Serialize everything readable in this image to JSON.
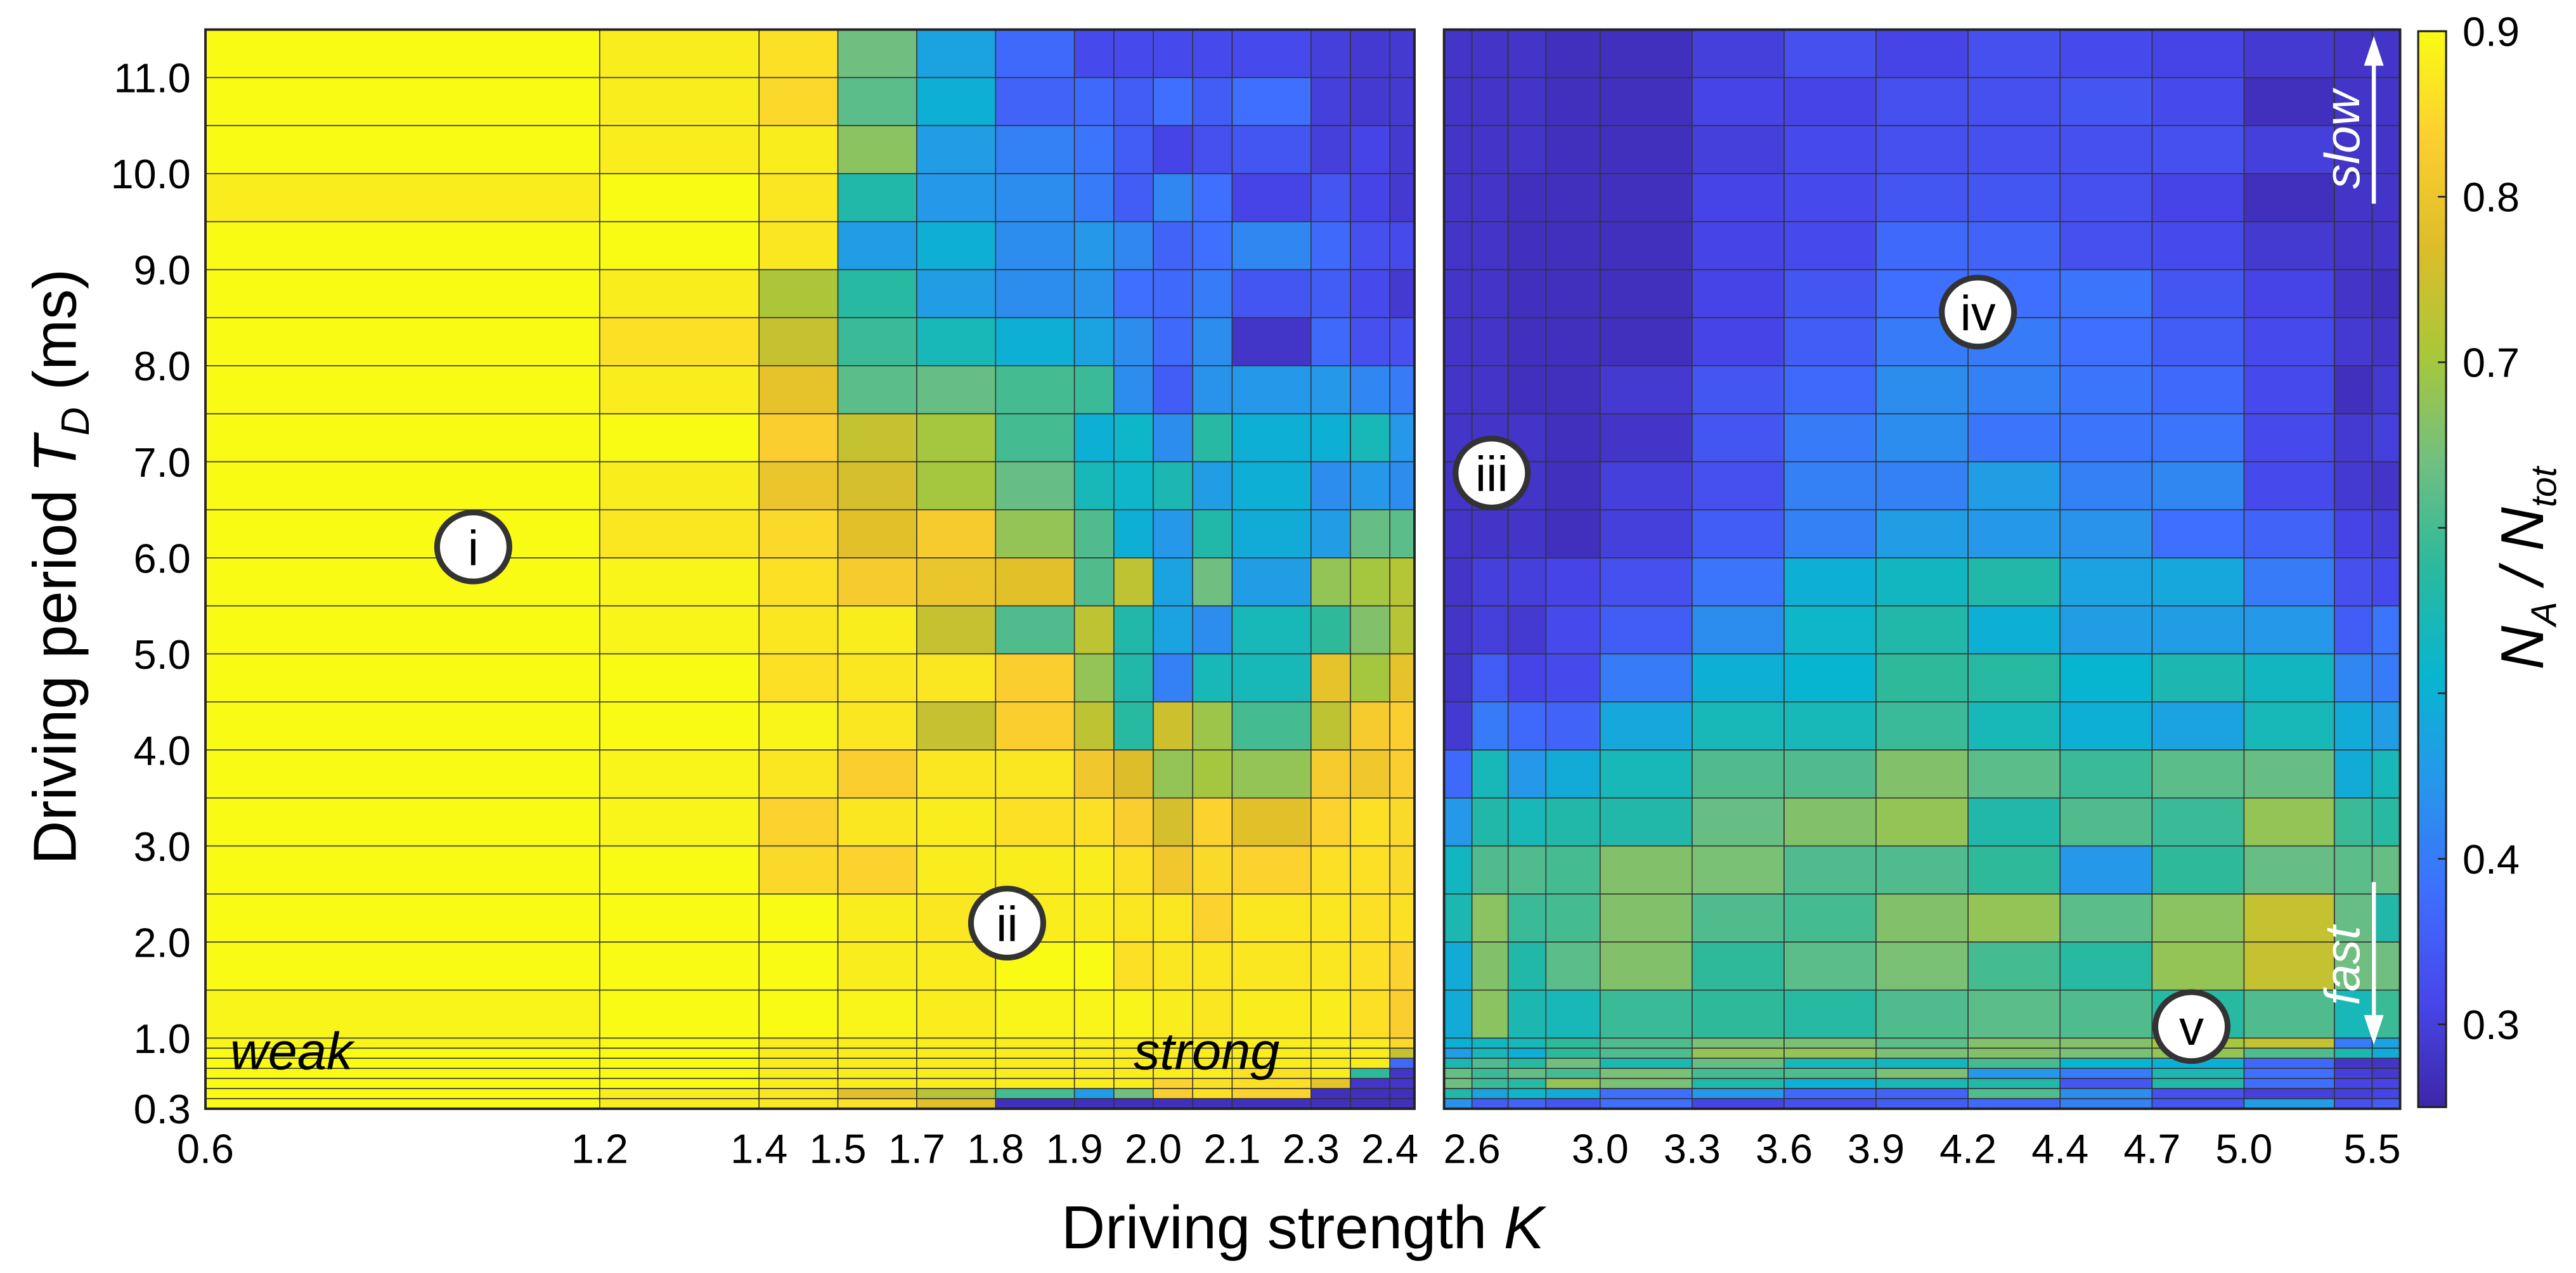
{
  "chart_data": {
    "type": "heatmap",
    "colormap": "parula",
    "xlabel": {
      "text": "Driving strength ",
      "var": "K"
    },
    "ylabel": {
      "text": "Driving period ",
      "var": "T",
      "sub": "D",
      "unit": " (ms)"
    },
    "colorbar": {
      "label": {
        "n1": "N",
        "sub1": "A",
        "sep": " / ",
        "n2": "N",
        "sub2": "tot"
      },
      "range": [
        0.25,
        0.9
      ],
      "ticks": [
        0.3,
        0.4,
        0.5,
        0.6,
        0.7,
        0.8,
        0.9
      ],
      "tick_labels": [
        "0.3",
        "0.4",
        "",
        "",
        "0.7",
        "0.8",
        "0.9"
      ]
    },
    "y_ticks": [
      "11.0",
      "10.0",
      "9.0",
      "8.0",
      "7.0",
      "6.0",
      "5.0",
      "4.0",
      "3.0",
      "2.0",
      "1.0",
      "0.3"
    ],
    "rows_T_ms": [
      11.0,
      10.5,
      10.0,
      9.5,
      9.0,
      8.5,
      8.0,
      7.5,
      7.0,
      6.5,
      6.0,
      5.5,
      5.0,
      4.5,
      4.0,
      3.5,
      3.0,
      2.5,
      2.0,
      1.5,
      1.0,
      0.9,
      0.8,
      0.7,
      0.6,
      0.5,
      0.4,
      0.3
    ],
    "panels": [
      {
        "x_ticks": [
          "0.6",
          "1.2",
          "1.4",
          "1.5",
          "1.7",
          "1.8",
          "1.9",
          "2.0",
          "2.1",
          "2.3",
          "2.4"
        ],
        "values": [
          [
            0.9,
            0.88,
            0.86,
            0.64,
            0.47,
            0.37,
            0.32,
            0.32,
            0.32,
            0.32,
            0.32,
            0.3,
            0.29,
            0.29
          ],
          [
            0.9,
            0.88,
            0.85,
            0.62,
            0.5,
            0.36,
            0.37,
            0.35,
            0.38,
            0.35,
            0.38,
            0.3,
            0.29,
            0.29
          ],
          [
            0.9,
            0.88,
            0.88,
            0.67,
            0.46,
            0.41,
            0.39,
            0.35,
            0.31,
            0.33,
            0.34,
            0.3,
            0.31,
            0.29
          ],
          [
            0.88,
            0.9,
            0.87,
            0.56,
            0.45,
            0.43,
            0.4,
            0.35,
            0.42,
            0.38,
            0.31,
            0.34,
            0.31,
            0.29
          ],
          [
            0.9,
            0.9,
            0.87,
            0.46,
            0.5,
            0.43,
            0.45,
            0.42,
            0.36,
            0.38,
            0.42,
            0.37,
            0.33,
            0.32
          ],
          [
            0.9,
            0.88,
            0.71,
            0.57,
            0.46,
            0.43,
            0.44,
            0.38,
            0.37,
            0.4,
            0.34,
            0.35,
            0.32,
            0.29
          ],
          [
            0.9,
            0.86,
            0.74,
            0.59,
            0.54,
            0.5,
            0.47,
            0.43,
            0.37,
            0.43,
            0.28,
            0.37,
            0.33,
            0.33
          ],
          [
            0.9,
            0.88,
            0.79,
            0.62,
            0.63,
            0.6,
            0.59,
            0.43,
            0.35,
            0.44,
            0.45,
            0.45,
            0.42,
            0.4
          ],
          [
            0.9,
            0.9,
            0.83,
            0.74,
            0.7,
            0.6,
            0.5,
            0.52,
            0.43,
            0.57,
            0.5,
            0.5,
            0.54,
            0.45
          ],
          [
            0.9,
            0.88,
            0.8,
            0.76,
            0.7,
            0.63,
            0.54,
            0.52,
            0.55,
            0.46,
            0.5,
            0.43,
            0.45,
            0.43
          ],
          [
            0.9,
            0.87,
            0.85,
            0.78,
            0.82,
            0.68,
            0.61,
            0.5,
            0.45,
            0.56,
            0.49,
            0.46,
            0.63,
            0.62
          ],
          [
            0.9,
            0.89,
            0.86,
            0.82,
            0.8,
            0.78,
            0.61,
            0.73,
            0.47,
            0.64,
            0.46,
            0.68,
            0.7,
            0.72
          ],
          [
            0.9,
            0.89,
            0.87,
            0.88,
            0.74,
            0.61,
            0.73,
            0.56,
            0.47,
            0.43,
            0.54,
            0.58,
            0.66,
            0.72
          ],
          [
            0.9,
            0.9,
            0.86,
            0.87,
            0.87,
            0.83,
            0.68,
            0.56,
            0.41,
            0.54,
            0.54,
            0.79,
            0.7,
            0.79
          ],
          [
            0.9,
            0.9,
            0.89,
            0.87,
            0.74,
            0.83,
            0.73,
            0.57,
            0.75,
            0.69,
            0.6,
            0.73,
            0.82,
            0.83
          ],
          [
            0.9,
            0.89,
            0.87,
            0.83,
            0.87,
            0.87,
            0.81,
            0.77,
            0.68,
            0.7,
            0.68,
            0.82,
            0.81,
            0.83
          ],
          [
            0.9,
            0.89,
            0.84,
            0.87,
            0.88,
            0.86,
            0.86,
            0.83,
            0.76,
            0.84,
            0.78,
            0.84,
            0.86,
            0.85
          ],
          [
            0.9,
            0.9,
            0.85,
            0.84,
            0.88,
            0.88,
            0.88,
            0.86,
            0.81,
            0.85,
            0.84,
            0.86,
            0.86,
            0.85
          ],
          [
            0.9,
            0.9,
            0.9,
            0.88,
            0.87,
            0.88,
            0.88,
            0.87,
            0.87,
            0.84,
            0.87,
            0.87,
            0.86,
            0.86
          ],
          [
            0.9,
            0.9,
            0.9,
            0.88,
            0.88,
            0.9,
            0.9,
            0.86,
            0.87,
            0.87,
            0.87,
            0.87,
            0.86,
            0.84
          ],
          [
            0.89,
            0.9,
            0.9,
            0.89,
            0.88,
            0.89,
            0.89,
            0.89,
            0.88,
            0.87,
            0.88,
            0.88,
            0.86,
            0.83
          ],
          [
            0.89,
            0.9,
            0.88,
            0.88,
            0.88,
            0.88,
            0.88,
            0.88,
            0.88,
            0.88,
            0.88,
            0.88,
            0.88,
            0.85
          ],
          [
            0.9,
            0.9,
            0.88,
            0.88,
            0.88,
            0.88,
            0.88,
            0.88,
            0.88,
            0.88,
            0.88,
            0.88,
            0.88,
            0.74
          ],
          [
            0.9,
            0.9,
            0.88,
            0.88,
            0.88,
            0.88,
            0.88,
            0.88,
            0.88,
            0.88,
            0.88,
            0.88,
            0.88,
            0.37
          ],
          [
            0.9,
            0.9,
            0.88,
            0.88,
            0.88,
            0.88,
            0.88,
            0.88,
            0.88,
            0.88,
            0.86,
            0.88,
            0.58,
            0.28
          ],
          [
            0.9,
            0.9,
            0.88,
            0.88,
            0.88,
            0.88,
            0.88,
            0.88,
            0.84,
            0.86,
            0.86,
            0.79,
            0.28,
            0.28
          ],
          [
            0.9,
            0.88,
            0.87,
            0.78,
            0.72,
            0.6,
            0.46,
            0.64,
            0.83,
            0.86,
            0.84,
            0.27,
            0.27,
            0.27
          ],
          [
            0.9,
            0.88,
            0.87,
            0.86,
            0.78,
            0.27,
            0.27,
            0.27,
            0.27,
            0.27,
            0.27,
            0.27,
            0.27,
            0.27
          ]
        ]
      },
      {
        "x_ticks": [
          "2.6",
          "3.0",
          "3.3",
          "3.6",
          "3.9",
          "4.2",
          "4.4",
          "4.7",
          "5.0",
          "5.5"
        ],
        "values": [
          [
            0.28,
            0.28,
            0.28,
            0.27,
            0.27,
            0.3,
            0.33,
            0.31,
            0.33,
            0.32,
            0.31,
            0.29,
            0.28,
            0.28
          ],
          [
            0.28,
            0.28,
            0.28,
            0.27,
            0.27,
            0.31,
            0.31,
            0.33,
            0.33,
            0.34,
            0.32,
            0.27,
            0.28,
            0.28
          ],
          [
            0.28,
            0.28,
            0.28,
            0.27,
            0.27,
            0.3,
            0.32,
            0.33,
            0.33,
            0.33,
            0.33,
            0.3,
            0.28,
            0.28
          ],
          [
            0.28,
            0.28,
            0.27,
            0.27,
            0.27,
            0.31,
            0.32,
            0.34,
            0.34,
            0.33,
            0.31,
            0.27,
            0.28,
            0.28
          ],
          [
            0.28,
            0.28,
            0.27,
            0.27,
            0.27,
            0.31,
            0.32,
            0.37,
            0.36,
            0.33,
            0.32,
            0.29,
            0.28,
            0.28
          ],
          [
            0.28,
            0.28,
            0.27,
            0.27,
            0.27,
            0.31,
            0.34,
            0.38,
            0.38,
            0.39,
            0.34,
            0.31,
            0.28,
            0.27
          ],
          [
            0.28,
            0.28,
            0.27,
            0.27,
            0.27,
            0.31,
            0.35,
            0.4,
            0.4,
            0.38,
            0.35,
            0.32,
            0.29,
            0.28
          ],
          [
            0.28,
            0.28,
            0.27,
            0.27,
            0.29,
            0.34,
            0.37,
            0.43,
            0.41,
            0.39,
            0.37,
            0.32,
            0.27,
            0.29
          ],
          [
            0.28,
            0.28,
            0.28,
            0.27,
            0.28,
            0.34,
            0.4,
            0.43,
            0.39,
            0.39,
            0.39,
            0.32,
            0.29,
            0.3
          ],
          [
            0.28,
            0.28,
            0.28,
            0.27,
            0.3,
            0.33,
            0.41,
            0.41,
            0.46,
            0.41,
            0.42,
            0.32,
            0.29,
            0.28
          ],
          [
            0.28,
            0.28,
            0.28,
            0.27,
            0.3,
            0.35,
            0.41,
            0.46,
            0.45,
            0.44,
            0.38,
            0.36,
            0.31,
            0.3
          ],
          [
            0.28,
            0.3,
            0.3,
            0.31,
            0.33,
            0.39,
            0.5,
            0.53,
            0.56,
            0.47,
            0.48,
            0.4,
            0.33,
            0.32
          ],
          [
            0.28,
            0.3,
            0.29,
            0.32,
            0.35,
            0.43,
            0.52,
            0.56,
            0.5,
            0.46,
            0.46,
            0.45,
            0.35,
            0.39
          ],
          [
            0.28,
            0.35,
            0.31,
            0.32,
            0.4,
            0.5,
            0.51,
            0.58,
            0.57,
            0.51,
            0.55,
            0.53,
            0.42,
            0.4
          ],
          [
            0.29,
            0.4,
            0.37,
            0.36,
            0.48,
            0.54,
            0.54,
            0.59,
            0.54,
            0.5,
            0.47,
            0.54,
            0.49,
            0.46
          ],
          [
            0.37,
            0.54,
            0.45,
            0.49,
            0.54,
            0.61,
            0.61,
            0.66,
            0.62,
            0.59,
            0.62,
            0.63,
            0.49,
            0.54
          ],
          [
            0.45,
            0.56,
            0.54,
            0.56,
            0.56,
            0.63,
            0.66,
            0.68,
            0.56,
            0.61,
            0.59,
            0.68,
            0.59,
            0.57
          ],
          [
            0.53,
            0.61,
            0.61,
            0.6,
            0.66,
            0.65,
            0.61,
            0.61,
            0.58,
            0.45,
            0.58,
            0.63,
            0.62,
            0.63
          ],
          [
            0.55,
            0.67,
            0.59,
            0.6,
            0.66,
            0.61,
            0.6,
            0.66,
            0.68,
            0.62,
            0.67,
            0.74,
            0.63,
            0.56
          ],
          [
            0.49,
            0.66,
            0.56,
            0.62,
            0.66,
            0.58,
            0.62,
            0.65,
            0.6,
            0.57,
            0.68,
            0.74,
            0.64,
            0.64
          ],
          [
            0.49,
            0.67,
            0.55,
            0.54,
            0.59,
            0.58,
            0.57,
            0.61,
            0.62,
            0.61,
            0.57,
            0.61,
            0.54,
            0.59
          ],
          [
            0.5,
            0.53,
            0.54,
            0.58,
            0.61,
            0.65,
            0.65,
            0.62,
            0.66,
            0.66,
            0.7,
            0.74,
            0.4,
            0.47
          ],
          [
            0.46,
            0.54,
            0.5,
            0.58,
            0.61,
            0.68,
            0.68,
            0.65,
            0.66,
            0.65,
            0.68,
            0.61,
            0.55,
            0.49
          ],
          [
            0.55,
            0.61,
            0.57,
            0.64,
            0.55,
            0.63,
            0.54,
            0.53,
            0.6,
            0.51,
            0.5,
            0.37,
            0.28,
            0.28
          ],
          [
            0.63,
            0.59,
            0.63,
            0.6,
            0.65,
            0.6,
            0.61,
            0.65,
            0.45,
            0.4,
            0.55,
            0.38,
            0.3,
            0.29
          ],
          [
            0.64,
            0.59,
            0.57,
            0.68,
            0.65,
            0.56,
            0.5,
            0.54,
            0.56,
            0.34,
            0.56,
            0.38,
            0.31,
            0.31
          ],
          [
            0.56,
            0.47,
            0.52,
            0.49,
            0.38,
            0.45,
            0.37,
            0.36,
            0.61,
            0.43,
            0.33,
            0.3,
            0.3,
            0.31
          ],
          [
            0.44,
            0.35,
            0.36,
            0.34,
            0.38,
            0.31,
            0.33,
            0.35,
            0.37,
            0.41,
            0.34,
            0.46,
            0.33,
            0.35
          ]
        ]
      }
    ],
    "annotations": {
      "regions": [
        "i",
        "ii",
        "iii",
        "iv",
        "v"
      ],
      "weak": "weak",
      "strong": "strong",
      "slow": "slow",
      "fast": "fast"
    }
  }
}
